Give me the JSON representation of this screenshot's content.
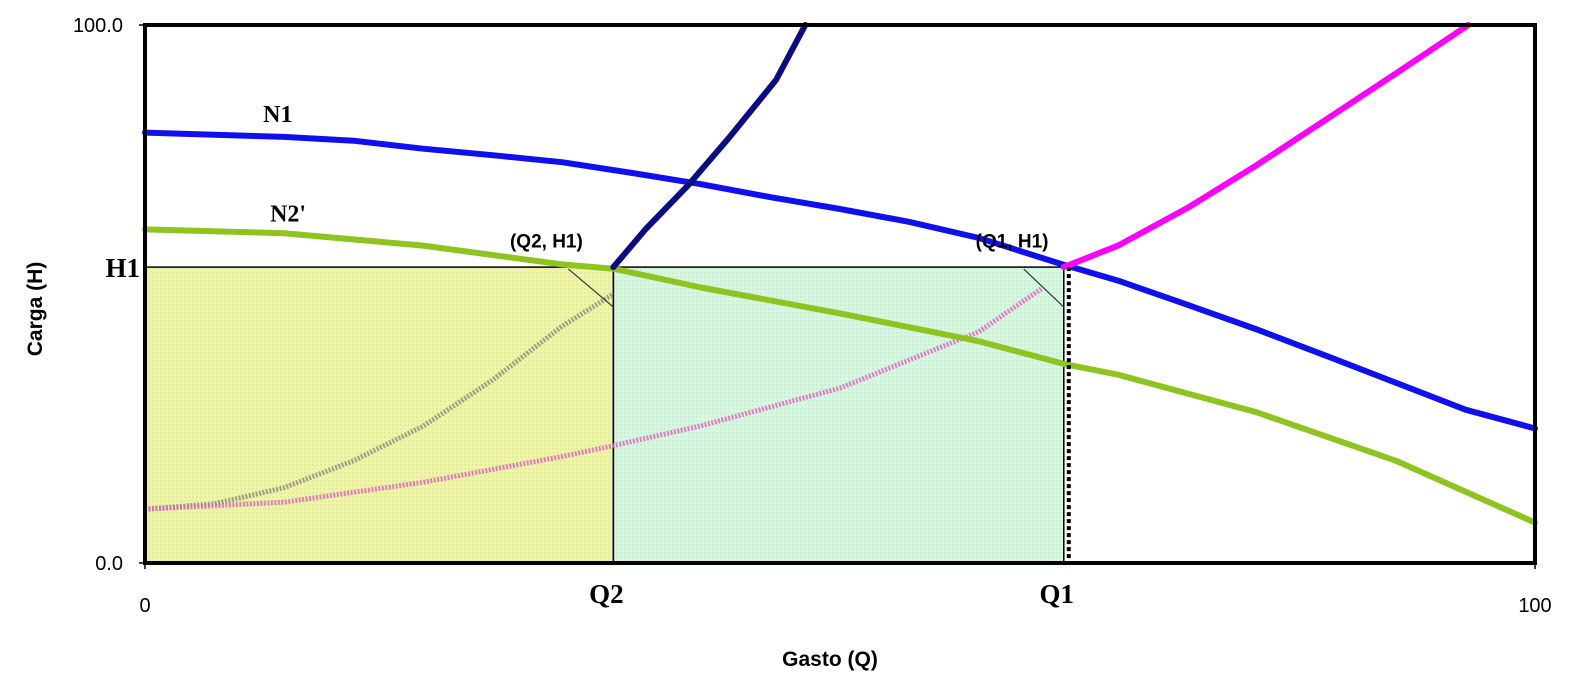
{
  "chart_data": {
    "type": "line",
    "xlabel": "Gasto (Q)",
    "ylabel": "Carga (H)",
    "xlim": [
      0,
      100
    ],
    "ylim": [
      0,
      100
    ],
    "x_ticks": [
      "0",
      "100"
    ],
    "y_ticks": [
      "0.0",
      "100.0"
    ],
    "marked_x": {
      "Q2": 33.7,
      "Q1": 66.1
    },
    "marked_y": {
      "H1": 55.0
    },
    "grid": false,
    "legend": "none",
    "series": [
      {
        "name": "N1",
        "color": "#1010ee",
        "x": [
          0,
          10,
          15,
          20,
          25,
          30,
          35,
          40,
          45,
          50,
          55,
          60,
          66,
          70,
          75,
          80,
          85,
          90,
          95,
          100
        ],
        "y": [
          80,
          79.2,
          78.5,
          77,
          75.8,
          74.5,
          72.5,
          70.4,
          68,
          65.8,
          63.4,
          60.4,
          55.5,
          52.5,
          48,
          43.4,
          38.5,
          33.5,
          28.5,
          25
        ]
      },
      {
        "name": "N2'",
        "color": "#8fc31f",
        "x": [
          0,
          10,
          20,
          30,
          33.7,
          40,
          50,
          60,
          66.1,
          70,
          80,
          90,
          100
        ],
        "y": [
          62,
          61.3,
          59,
          55.5,
          54.7,
          51.2,
          46.4,
          41.2,
          37,
          35,
          28,
          19,
          7.5
        ]
      },
      {
        "name": "",
        "color": "#0b0b82",
        "x": [
          33.7,
          36,
          39,
          42,
          45.4,
          47.5
        ],
        "y": [
          55.0,
          62,
          70,
          79,
          89.8,
          100
        ]
      },
      {
        "name": "",
        "color": "#ff00ff",
        "x": [
          66.1,
          70,
          75,
          80,
          85,
          90,
          95.2
        ],
        "y": [
          55.0,
          59,
          66,
          74,
          82.5,
          91,
          100
        ]
      }
    ],
    "faded_series": [
      {
        "name": "",
        "color": "#8a8a7a",
        "x": [
          0,
          5,
          10,
          15,
          20,
          25,
          30,
          33.7
        ],
        "y": [
          10,
          11,
          14,
          19,
          25.4,
          34,
          44,
          50
        ]
      },
      {
        "name": "",
        "color": "#e060c0",
        "x": [
          0,
          10,
          20,
          30,
          33.7,
          40,
          50,
          60,
          64.5
        ],
        "y": [
          10,
          11.3,
          15,
          19.8,
          21.8,
          25.5,
          32.5,
          43,
          51
        ]
      }
    ],
    "regions": [
      {
        "x": [
          0,
          33.7
        ],
        "y": [
          0,
          55.0
        ],
        "color": "#eef5a8"
      },
      {
        "x": [
          33.7,
          66.1
        ],
        "y": [
          0,
          55.0
        ],
        "color": "#d8f7e0"
      }
    ],
    "annotations": [
      {
        "text": "N1",
        "x": 8.5,
        "y": 82
      },
      {
        "text": "N2'",
        "x": 9,
        "y": 63.5
      },
      {
        "text": "(Q2, H1)",
        "x": 31.5,
        "y": 58.6
      },
      {
        "text": "(Q1, H1)",
        "x": 65.0,
        "y": 58.6
      }
    ]
  }
}
